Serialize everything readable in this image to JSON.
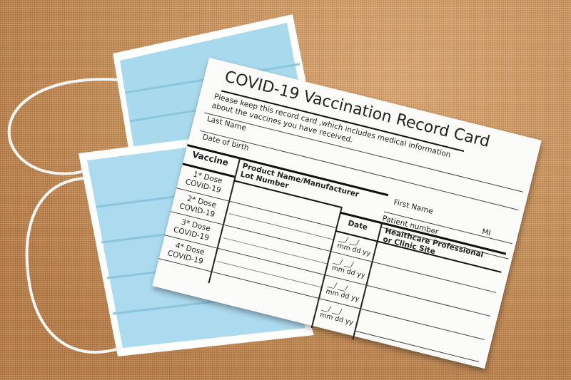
{
  "card": {
    "title": "COVID-19 Vaccination Record Card",
    "instructions_line1": "Please keep this record card ,which includes medical information",
    "instructions_line2": "about the vaccines you have received.",
    "last_name_label": "Last Name",
    "dob_label": "Date of birth",
    "first_name_label": "First Name",
    "mi_label": "MI",
    "patient_number_label": "Patient number",
    "table": {
      "col_vaccine": "Vaccine",
      "col_product_line1": "Product Name/Manufacturer",
      "col_product_line2": "Lot Number",
      "col_date": "Date",
      "col_healthcare_line1": "Healthcare Professional",
      "col_healthcare_line2": "or Clinic Site",
      "rows": [
        {
          "dose": "1* Dose",
          "vaccine": "COVID-19"
        },
        {
          "dose": "2* Dose",
          "vaccine": "COVID-19"
        },
        {
          "dose": "3* Dose",
          "vaccine": "COVID-19"
        },
        {
          "dose": "4* Dose",
          "vaccine": "COVID-19"
        }
      ],
      "date_placeholder": {
        "slashes": "__/ __/",
        "mm": "mm",
        "dd": "dd",
        "yy": "yy"
      }
    }
  },
  "colors": {
    "burlap": "#c48d5a",
    "mask": "#a9d9ec",
    "card": "#fbfbfa"
  }
}
